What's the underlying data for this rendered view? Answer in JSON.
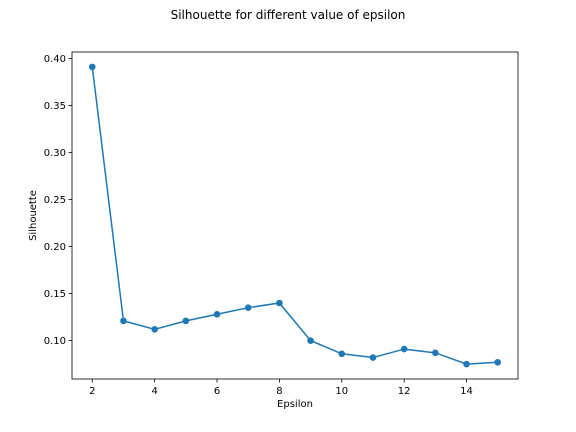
{
  "chart_data": {
    "type": "line",
    "title": "Silhouette for different value of epsilon",
    "xlabel": "Epsilon",
    "ylabel": "Silhouette",
    "x": [
      2,
      3,
      4,
      5,
      6,
      7,
      8,
      9,
      10,
      11,
      12,
      13,
      14,
      15
    ],
    "series": [
      {
        "values": [
          0.391,
          0.121,
          0.112,
          0.121,
          0.128,
          0.135,
          0.14,
          0.1,
          0.086,
          0.082,
          0.091,
          0.087,
          0.075,
          0.077
        ],
        "color": "#1f77b4",
        "marker": "circle"
      }
    ],
    "xlim": [
      1.35,
      15.65
    ],
    "ylim": [
      0.0592,
      0.4068
    ],
    "xticks": [
      2,
      4,
      6,
      8,
      10,
      12,
      14
    ],
    "yticks": [
      0.1,
      0.15,
      0.2,
      0.25,
      0.3,
      0.35,
      0.4
    ],
    "ytick_labels": [
      "0.10",
      "0.15",
      "0.20",
      "0.25",
      "0.30",
      "0.35",
      "0.40"
    ],
    "grid": false,
    "legend": "none"
  }
}
